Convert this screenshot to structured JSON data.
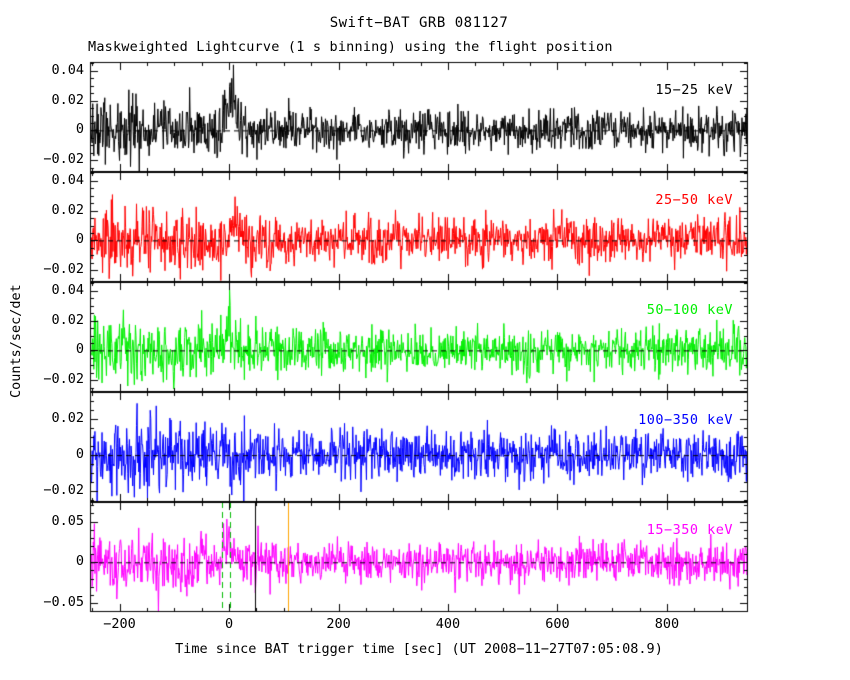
{
  "chart_data": {
    "type": "line",
    "title": "Swift−BAT GRB 081127",
    "subtitle": "Maskweighted Lightcurve (1 s binning) using the flight position",
    "xlabel": "Time since BAT trigger time [sec] (UT 2008−11−27T07:05:08.9)",
    "ylabel": "Counts/sec/det",
    "xlim": [
      -254,
      948
    ],
    "xticks": [
      -200,
      0,
      200,
      400,
      600,
      800
    ],
    "x_minor_step": 50,
    "bin_seconds": 1,
    "grid": false,
    "legend_position": "in-panel-right",
    "zero_line": {
      "color": "#000000",
      "dashed": true
    },
    "panels": [
      {
        "label": "15−25 keV",
        "color": "#000000",
        "ylim": [
          -0.028,
          0.046
        ],
        "yticks": [
          -0.02,
          0,
          0.02,
          0.04
        ],
        "y_minor_step": 0.005,
        "noise_sigma": 0.0068,
        "early_noise_factor": 1.45,
        "burst": {
          "t0": 3,
          "width": 10,
          "amplitude": 0.022
        }
      },
      {
        "label": "25−50 keV",
        "color": "#ff0000",
        "ylim": [
          -0.028,
          0.046
        ],
        "yticks": [
          -0.02,
          0,
          0.02,
          0.04
        ],
        "y_minor_step": 0.005,
        "noise_sigma": 0.0075,
        "early_noise_factor": 1.45,
        "burst": {
          "t0": 8,
          "width": 8,
          "amplitude": 0.013
        }
      },
      {
        "label": "50−100 keV",
        "color": "#00ee00",
        "ylim": [
          -0.028,
          0.046
        ],
        "yticks": [
          -0.02,
          0,
          0.02,
          0.04
        ],
        "y_minor_step": 0.005,
        "noise_sigma": 0.0075,
        "early_noise_factor": 1.45,
        "burst": {
          "t0": 0,
          "width": 5,
          "amplitude": 0.018
        }
      },
      {
        "label": "100−350 keV",
        "color": "#0000ff",
        "ylim": [
          -0.026,
          0.035
        ],
        "yticks": [
          -0.02,
          0,
          0.02
        ],
        "y_minor_step": 0.005,
        "noise_sigma": 0.0068,
        "early_noise_factor": 1.5,
        "burst": {
          "t0": 0,
          "width": 5,
          "amplitude": 0
        }
      },
      {
        "label": "15−350 keV",
        "color": "#ff00ff",
        "ylim": [
          -0.061,
          0.074
        ],
        "yticks": [
          -0.05,
          0,
          0.05
        ],
        "y_minor_step": 0.01,
        "noise_sigma": 0.013,
        "early_noise_factor": 1.5,
        "burst": {
          "t0": 2,
          "width": 9,
          "amplitude": 0.03
        }
      }
    ],
    "annotations": [
      {
        "panel": 4,
        "type": "vline",
        "t": -13,
        "color": "#00bb00",
        "dash": true
      },
      {
        "panel": 4,
        "type": "vline",
        "t": 2,
        "color": "#00bb00",
        "dash": true
      },
      {
        "panel": 4,
        "type": "vline",
        "t": 47,
        "color": "#000000",
        "dash": false
      },
      {
        "panel": 4,
        "type": "vline",
        "t": 107,
        "color": "#ffa500",
        "dash": false
      }
    ]
  }
}
